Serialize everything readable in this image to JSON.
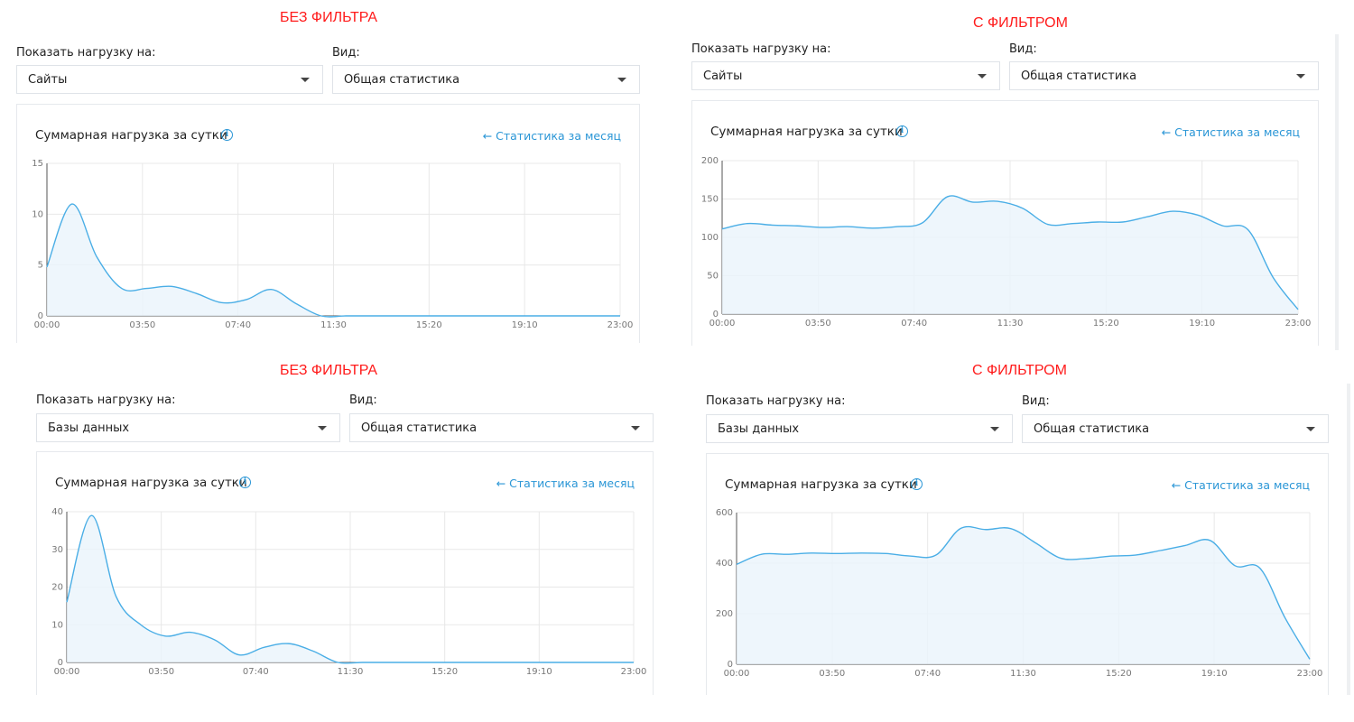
{
  "panels": [
    {
      "heading": "БЕЗ ФИЛЬТРА",
      "show_label": "Показать нагрузку на:",
      "show_value": "Сайты",
      "view_label": "Вид:",
      "view_value": "Общая статистика",
      "card_title": "Суммарная нагрузка за сутки",
      "info_icon": "i",
      "month_link": "← Статистика за месяц"
    },
    {
      "heading": "С ФИЛЬТРОМ",
      "show_label": "Показать нагрузку на:",
      "show_value": "Сайты",
      "view_label": "Вид:",
      "view_value": "Общая статистика",
      "card_title": "Суммарная нагрузка за сутки",
      "info_icon": "i",
      "month_link": "← Статистика за месяц"
    },
    {
      "heading": "БЕЗ ФИЛЬТРА",
      "show_label": "Показать нагрузку на:",
      "show_value": "Базы данных",
      "view_label": "Вид:",
      "view_value": "Общая статистика",
      "card_title": "Суммарная нагрузка за сутки",
      "info_icon": "i",
      "month_link": "← Статистика за месяц"
    },
    {
      "heading": "С ФИЛЬТРОМ",
      "show_label": "Показать нагрузку на:",
      "show_value": "Базы данных",
      "view_label": "Вид:",
      "view_value": "Общая статистика",
      "card_title": "Суммарная нагрузка за сутки",
      "info_icon": "i",
      "month_link": "← Статистика за месяц"
    }
  ],
  "colors": {
    "heading": "#ff1a1a",
    "line": "#4aaee6",
    "fill": "#eaf4fb",
    "link": "#2a96d6",
    "grid": "#e8e8e8"
  },
  "chart_data": [
    {
      "type": "area",
      "title": "Суммарная нагрузка за сутки",
      "x_ticks": [
        "00:00",
        "03:50",
        "07:40",
        "11:30",
        "15:20",
        "19:10",
        "23:00"
      ],
      "x_hours": [
        0,
        1,
        2,
        3,
        4,
        5,
        6,
        7,
        8,
        9,
        10,
        11,
        12,
        13,
        14,
        15,
        16,
        17,
        18,
        19,
        20,
        21,
        22,
        23
      ],
      "values": [
        4.8,
        11,
        5.8,
        2.7,
        2.7,
        2.9,
        2.2,
        1.3,
        1.6,
        2.6,
        1.2,
        0,
        0,
        0,
        0,
        0,
        0,
        0,
        0,
        0,
        0,
        0,
        0,
        0
      ],
      "y_ticks": [
        0,
        5,
        10,
        15
      ],
      "ylim": [
        0,
        15
      ]
    },
    {
      "type": "area",
      "title": "Суммарная нагрузка за сутки",
      "x_ticks": [
        "00:00",
        "03:50",
        "07:40",
        "11:30",
        "15:20",
        "19:10",
        "23:00"
      ],
      "x_hours": [
        0,
        1,
        2,
        3,
        4,
        5,
        6,
        7,
        8,
        9,
        10,
        11,
        12,
        13,
        14,
        15,
        16,
        17,
        18,
        19,
        20,
        21,
        22,
        23
      ],
      "values": [
        111,
        118,
        116,
        115,
        113,
        114,
        112,
        114,
        119,
        153,
        146,
        147,
        138,
        117,
        118,
        120,
        120,
        127,
        134,
        129,
        115,
        110,
        48,
        6
      ],
      "y_ticks": [
        0,
        50,
        100,
        150,
        200
      ],
      "ylim": [
        0,
        200
      ]
    },
    {
      "type": "area",
      "title": "Суммарная нагрузка за сутки",
      "x_ticks": [
        "00:00",
        "03:50",
        "07:40",
        "11:30",
        "15:20",
        "19:10",
        "23:00"
      ],
      "x_hours": [
        0,
        1,
        2,
        3,
        4,
        5,
        6,
        7,
        8,
        9,
        10,
        11,
        12,
        13,
        14,
        15,
        16,
        17,
        18,
        19,
        20,
        21,
        22,
        23
      ],
      "values": [
        16,
        39,
        17.5,
        10,
        7,
        8,
        6,
        2,
        4,
        5,
        3,
        0,
        0,
        0,
        0,
        0,
        0,
        0,
        0,
        0,
        0,
        0,
        0,
        0
      ],
      "y_ticks": [
        0,
        10,
        20,
        30,
        40
      ],
      "ylim": [
        0,
        40
      ]
    },
    {
      "type": "area",
      "title": "Суммарная нагрузка за сутки",
      "x_ticks": [
        "00:00",
        "03:50",
        "07:40",
        "11:30",
        "15:20",
        "19:10",
        "23:00"
      ],
      "x_hours": [
        0,
        1,
        2,
        3,
        4,
        5,
        6,
        7,
        8,
        9,
        10,
        11,
        12,
        13,
        14,
        15,
        16,
        17,
        18,
        19,
        20,
        21,
        22,
        23
      ],
      "values": [
        395,
        435,
        435,
        440,
        438,
        440,
        438,
        428,
        432,
        538,
        533,
        537,
        480,
        420,
        418,
        428,
        432,
        450,
        470,
        490,
        390,
        380,
        185,
        20
      ],
      "y_ticks": [
        0,
        200,
        400,
        600
      ],
      "ylim": [
        0,
        600
      ]
    }
  ]
}
